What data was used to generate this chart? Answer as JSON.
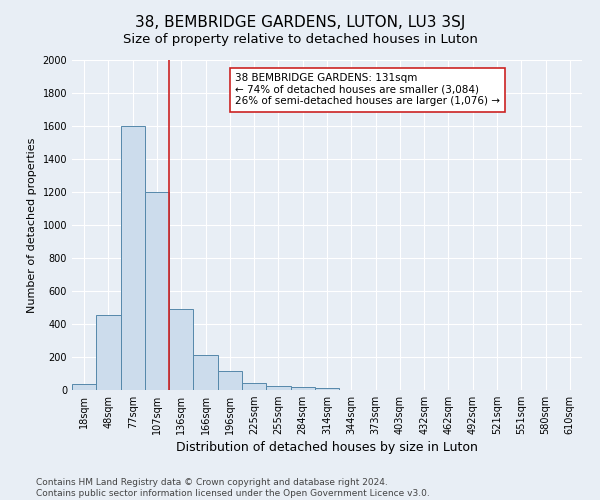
{
  "title": "38, BEMBRIDGE GARDENS, LUTON, LU3 3SJ",
  "subtitle": "Size of property relative to detached houses in Luton",
  "xlabel": "Distribution of detached houses by size in Luton",
  "ylabel": "Number of detached properties",
  "bin_labels": [
    "18sqm",
    "48sqm",
    "77sqm",
    "107sqm",
    "136sqm",
    "166sqm",
    "196sqm",
    "225sqm",
    "255sqm",
    "284sqm",
    "314sqm",
    "344sqm",
    "373sqm",
    "403sqm",
    "432sqm",
    "462sqm",
    "492sqm",
    "521sqm",
    "551sqm",
    "580sqm",
    "610sqm"
  ],
  "bar_values": [
    35,
    455,
    1600,
    1200,
    490,
    210,
    115,
    45,
    25,
    20,
    15,
    0,
    0,
    0,
    0,
    0,
    0,
    0,
    0,
    0,
    0
  ],
  "bar_color": "#ccdcec",
  "bar_edge_color": "#5588aa",
  "vline_color": "#cc2222",
  "vline_x_index": 3.5,
  "annotation_title": "38 BEMBRIDGE GARDENS: 131sqm",
  "annotation_line1": "← 74% of detached houses are smaller (3,084)",
  "annotation_line2": "26% of semi-detached houses are larger (1,076) →",
  "annotation_box_color": "white",
  "annotation_box_edge": "#cc2222",
  "ylim": [
    0,
    2000
  ],
  "yticks": [
    0,
    200,
    400,
    600,
    800,
    1000,
    1200,
    1400,
    1600,
    1800,
    2000
  ],
  "bg_color": "#e8eef5",
  "plot_bg_color": "#e8eef5",
  "footer_line1": "Contains HM Land Registry data © Crown copyright and database right 2024.",
  "footer_line2": "Contains public sector information licensed under the Open Government Licence v3.0.",
  "title_fontsize": 11,
  "subtitle_fontsize": 9.5,
  "xlabel_fontsize": 9,
  "ylabel_fontsize": 8,
  "tick_fontsize": 7,
  "annotation_fontsize": 7.5,
  "footer_fontsize": 6.5
}
